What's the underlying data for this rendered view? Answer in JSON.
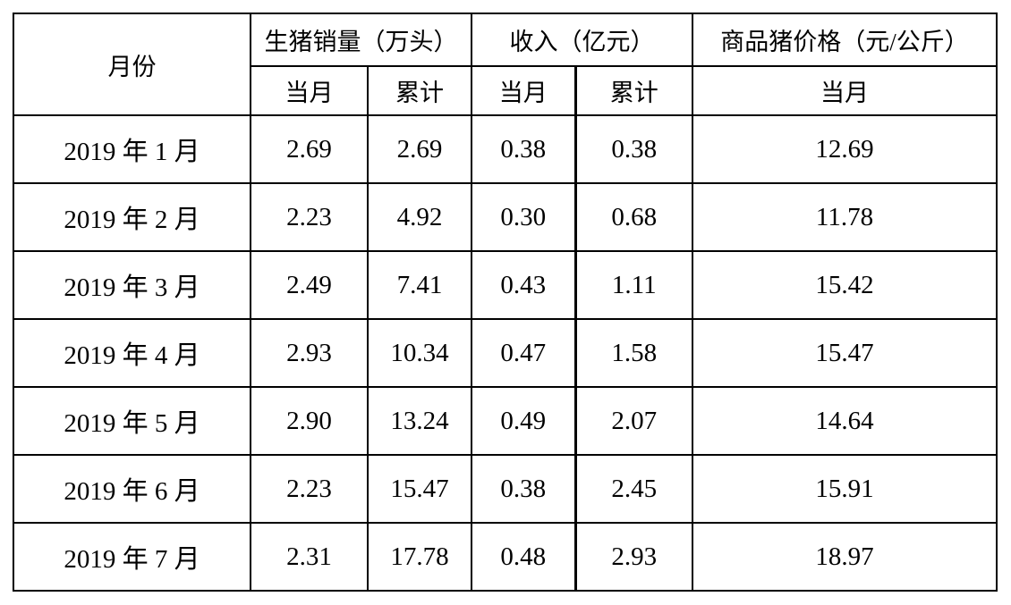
{
  "table": {
    "header": {
      "month": "月份",
      "groups": [
        {
          "label": "生猪销量（万头）",
          "subs": [
            "当月",
            "累计"
          ]
        },
        {
          "label": "收入（亿元）",
          "subs": [
            "当月",
            "累计"
          ]
        },
        {
          "label": "商品猪价格（元/公斤）",
          "subs": [
            "当月"
          ]
        }
      ]
    },
    "rows": [
      [
        "2019 年 1 月",
        "2.69",
        "2.69",
        "0.38",
        "0.38",
        "12.69"
      ],
      [
        "2019 年 2 月",
        "2.23",
        "4.92",
        "0.30",
        "0.68",
        "11.78"
      ],
      [
        "2019 年 3 月",
        "2.49",
        "7.41",
        "0.43",
        "1.11",
        "15.42"
      ],
      [
        "2019 年 4 月",
        "2.93",
        "10.34",
        "0.47",
        "1.58",
        "15.47"
      ],
      [
        "2019 年 5 月",
        "2.90",
        "13.24",
        "0.49",
        "2.07",
        "14.64"
      ],
      [
        "2019 年 6 月",
        "2.23",
        "15.47",
        "0.38",
        "2.45",
        "15.91"
      ],
      [
        "2019 年 7 月",
        "2.31",
        "17.78",
        "0.48",
        "2.93",
        "18.97"
      ]
    ]
  }
}
